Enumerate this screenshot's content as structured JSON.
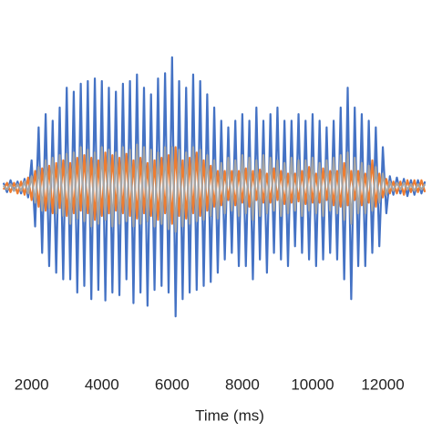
{
  "chart_data": {
    "type": "line",
    "x_label": "Time (ms)",
    "x": [
      1200,
      1300,
      1400,
      1500,
      1600,
      1700,
      1800,
      1900,
      2000,
      2100,
      2200,
      2300,
      2400,
      2500,
      2600,
      2700,
      2800,
      2900,
      3000,
      3100,
      3200,
      3300,
      3400,
      3500,
      3600,
      3700,
      3800,
      3900,
      4000,
      4100,
      4200,
      4300,
      4400,
      4500,
      4600,
      4700,
      4800,
      4900,
      5000,
      5100,
      5200,
      5300,
      5400,
      5500,
      5600,
      5700,
      5800,
      5900,
      6000,
      6100,
      6200,
      6300,
      6400,
      6500,
      6600,
      6700,
      6800,
      6900,
      7000,
      7100,
      7200,
      7300,
      7400,
      7500,
      7600,
      7700,
      7800,
      7900,
      8000,
      8100,
      8200,
      8300,
      8400,
      8500,
      8600,
      8700,
      8800,
      8900,
      9000,
      9100,
      9200,
      9300,
      9400,
      9500,
      9600,
      9700,
      9800,
      9900,
      10000,
      10100,
      10200,
      10300,
      10400,
      10500,
      10600,
      10700,
      10800,
      10900,
      11000,
      11100,
      11200,
      11300,
      11400,
      11500,
      11600,
      11700,
      11800,
      11900,
      12000,
      12100,
      12200,
      12300,
      12400,
      12500,
      12600,
      12700,
      12800,
      12900,
      13000,
      13100,
      13200
    ],
    "series": [
      {
        "color": "#4472c4",
        "values": [
          0.03,
          -0.04,
          0.05,
          -0.03,
          0.04,
          -0.05,
          0.06,
          -0.08,
          0.2,
          -0.3,
          0.45,
          -0.5,
          0.55,
          -0.6,
          0.5,
          -0.65,
          0.6,
          -0.7,
          0.75,
          -0.7,
          0.72,
          -0.8,
          0.78,
          -0.75,
          0.8,
          -0.85,
          0.82,
          -0.78,
          0.8,
          -0.86,
          0.75,
          -0.8,
          0.72,
          -0.82,
          0.78,
          -0.7,
          0.8,
          -0.88,
          0.85,
          -0.8,
          0.75,
          -0.9,
          0.7,
          -0.78,
          0.82,
          -0.75,
          0.86,
          -0.8,
          0.98,
          -0.98,
          0.8,
          -0.85,
          0.75,
          -0.8,
          0.85,
          -0.78,
          0.8,
          -0.75,
          0.7,
          -0.72,
          0.6,
          -0.65,
          0.5,
          -0.55,
          0.45,
          -0.5,
          0.5,
          -0.6,
          0.55,
          -0.6,
          0.5,
          -0.7,
          0.6,
          -0.55,
          0.5,
          -0.65,
          0.55,
          -0.5,
          0.6,
          -0.55,
          0.5,
          -0.6,
          0.5,
          -0.45,
          0.55,
          -0.5,
          0.5,
          -0.55,
          0.55,
          -0.6,
          0.5,
          -0.55,
          0.45,
          -0.5,
          0.5,
          -0.55,
          0.6,
          -0.7,
          0.75,
          -0.85,
          0.6,
          -0.6,
          0.55,
          -0.6,
          0.5,
          -0.5,
          0.45,
          -0.45,
          0.3,
          -0.2,
          0.08,
          -0.06,
          0.07,
          -0.05,
          0.06,
          -0.07,
          0.05,
          -0.06,
          0.05,
          -0.05,
          0.04
        ]
      },
      {
        "color": "#ed7d31",
        "values": [
          -0.02,
          0.03,
          -0.04,
          0.03,
          -0.05,
          0.04,
          -0.06,
          0.07,
          -0.1,
          0.12,
          -0.15,
          0.14,
          -0.18,
          0.16,
          -0.2,
          0.18,
          -0.16,
          0.2,
          -0.22,
          0.18,
          -0.2,
          0.22,
          -0.18,
          0.24,
          -0.2,
          0.22,
          -0.25,
          0.2,
          -0.22,
          0.26,
          -0.2,
          0.24,
          -0.18,
          0.22,
          -0.2,
          0.25,
          -0.22,
          0.2,
          -0.24,
          0.22,
          -0.2,
          0.18,
          -0.22,
          0.2,
          -0.25,
          0.22,
          -0.2,
          0.24,
          -0.28,
          0.3,
          -0.22,
          0.2,
          -0.24,
          0.22,
          -0.2,
          0.26,
          -0.22,
          0.2,
          -0.18,
          0.16,
          -0.15,
          0.12,
          -0.14,
          0.12,
          -0.1,
          0.12,
          -0.14,
          0.12,
          -0.12,
          0.14,
          -0.15,
          0.12,
          -0.1,
          0.13,
          -0.12,
          0.1,
          -0.12,
          0.14,
          -0.1,
          0.12,
          -0.13,
          0.1,
          -0.12,
          0.1,
          -0.11,
          0.12,
          -0.13,
          0.15,
          -0.12,
          0.1,
          -0.12,
          0.14,
          -0.1,
          0.12,
          -0.14,
          0.12,
          -0.15,
          0.18,
          -0.14,
          0.12,
          -0.1,
          0.12,
          -0.14,
          0.1,
          -0.12,
          0.2,
          -0.15,
          0.1,
          -0.08,
          0.06,
          -0.05,
          0.04,
          -0.05,
          0.04,
          -0.06,
          0.05,
          -0.04,
          0.05,
          -0.04,
          0.05,
          -0.04
        ]
      },
      {
        "color": "#a5a5a5",
        "values": [
          0.01,
          -0.02,
          0.02,
          -0.03,
          0.02,
          -0.03,
          0.04,
          -0.05,
          0.08,
          -0.12,
          0.15,
          -0.18,
          0.2,
          -0.16,
          0.22,
          -0.2,
          0.24,
          -0.22,
          0.25,
          -0.28,
          0.26,
          -0.24,
          0.3,
          -0.26,
          0.28,
          -0.3,
          0.26,
          -0.28,
          0.3,
          -0.25,
          0.28,
          -0.3,
          0.26,
          -0.28,
          0.3,
          -0.26,
          0.28,
          -0.3,
          0.32,
          -0.28,
          0.3,
          -0.26,
          0.28,
          -0.3,
          0.26,
          -0.28,
          0.3,
          -0.32,
          0.3,
          -0.34,
          0.28,
          -0.3,
          0.26,
          -0.28,
          0.3,
          -0.26,
          0.28,
          -0.25,
          0.24,
          -0.22,
          0.2,
          -0.24,
          0.18,
          -0.2,
          0.22,
          -0.18,
          0.2,
          -0.22,
          0.24,
          -0.2,
          0.22,
          -0.25,
          0.2,
          -0.22,
          0.24,
          -0.2,
          0.22,
          -0.18,
          0.2,
          -0.22,
          0.18,
          -0.2,
          0.22,
          -0.18,
          0.2,
          -0.22,
          0.2,
          -0.18,
          0.22,
          -0.2,
          0.18,
          -0.22,
          0.2,
          -0.18,
          0.22,
          -0.2,
          0.24,
          -0.25,
          0.26,
          -0.28,
          0.22,
          -0.2,
          0.18,
          -0.2,
          0.16,
          -0.18,
          0.15,
          -0.12,
          0.1,
          -0.06,
          0.04,
          -0.03,
          0.03,
          -0.02,
          0.03,
          -0.02,
          0.02,
          -0.03,
          0.02,
          -0.02,
          0.02
        ]
      }
    ],
    "xlim": [
      1100,
      13400
    ],
    "xticks": [
      2000,
      4000,
      6000,
      8000,
      10000,
      12000
    ],
    "ylim": [
      -1,
      1
    ]
  }
}
